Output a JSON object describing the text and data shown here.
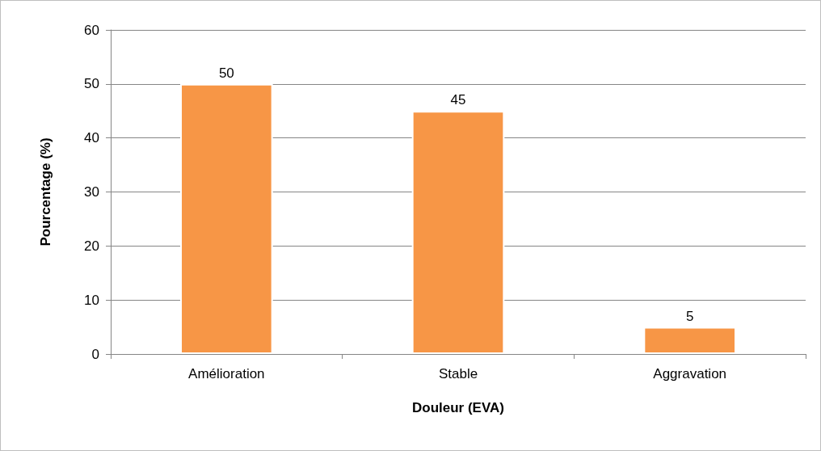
{
  "chart_data": {
    "type": "bar",
    "xlabel": "Douleur (EVA)",
    "ylabel": "Pourcentage (%)",
    "categories": [
      "Amélioration",
      "Stable",
      "Aggravation"
    ],
    "values": [
      50,
      45,
      5
    ],
    "color": "#f79646",
    "ylim": [
      0,
      60
    ],
    "yticks": [
      0,
      10,
      20,
      30,
      40,
      50,
      60
    ],
    "grid": "y",
    "data_labels": true
  }
}
